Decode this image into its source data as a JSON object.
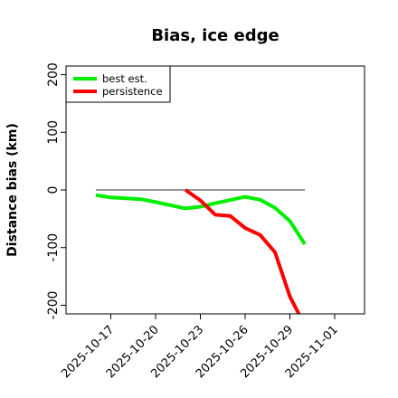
{
  "chart_data": {
    "type": "line",
    "title": "Bias, ice edge",
    "xlabel": "",
    "ylabel": "Distance bias (km)",
    "x_is_date": true,
    "xlim": [
      "2025-10-14",
      "2025-11-03"
    ],
    "ylim": [
      -215,
      215
    ],
    "x_ticks": [
      "2025-10-17",
      "2025-10-20",
      "2025-10-23",
      "2025-10-26",
      "2025-10-29",
      "2025-11-01"
    ],
    "y_ticks": [
      -200,
      -100,
      0,
      100,
      200
    ],
    "grid": false,
    "legend_position": "top-left",
    "reference_line": {
      "y": 0,
      "x_start": "2025-10-16",
      "x_end": "2025-10-30",
      "color": "#777777"
    },
    "series": [
      {
        "name": "best est.",
        "color": "#00ee00",
        "points": [
          {
            "x": "2025-10-16",
            "y": -9
          },
          {
            "x": "2025-10-17",
            "y": -13
          },
          {
            "x": "2025-10-19",
            "y": -16
          },
          {
            "x": "2025-10-20",
            "y": -21
          },
          {
            "x": "2025-10-22",
            "y": -32
          },
          {
            "x": "2025-10-23",
            "y": -29
          },
          {
            "x": "2025-10-24",
            "y": -23
          },
          {
            "x": "2025-10-26",
            "y": -12
          },
          {
            "x": "2025-10-27",
            "y": -17
          },
          {
            "x": "2025-10-28",
            "y": -31
          },
          {
            "x": "2025-10-29",
            "y": -54
          },
          {
            "x": "2025-10-30",
            "y": -94
          }
        ]
      },
      {
        "name": "persistence",
        "color": "#ff0000",
        "points": [
          {
            "x": "2025-10-22",
            "y": 0
          },
          {
            "x": "2025-10-23",
            "y": -18
          },
          {
            "x": "2025-10-24",
            "y": -43
          },
          {
            "x": "2025-10-25",
            "y": -45
          },
          {
            "x": "2025-10-26",
            "y": -66
          },
          {
            "x": "2025-10-27",
            "y": -78
          },
          {
            "x": "2025-10-28",
            "y": -108
          },
          {
            "x": "2025-10-29",
            "y": -185
          },
          {
            "x": "2025-10-29.6",
            "y": -215
          }
        ]
      }
    ]
  }
}
